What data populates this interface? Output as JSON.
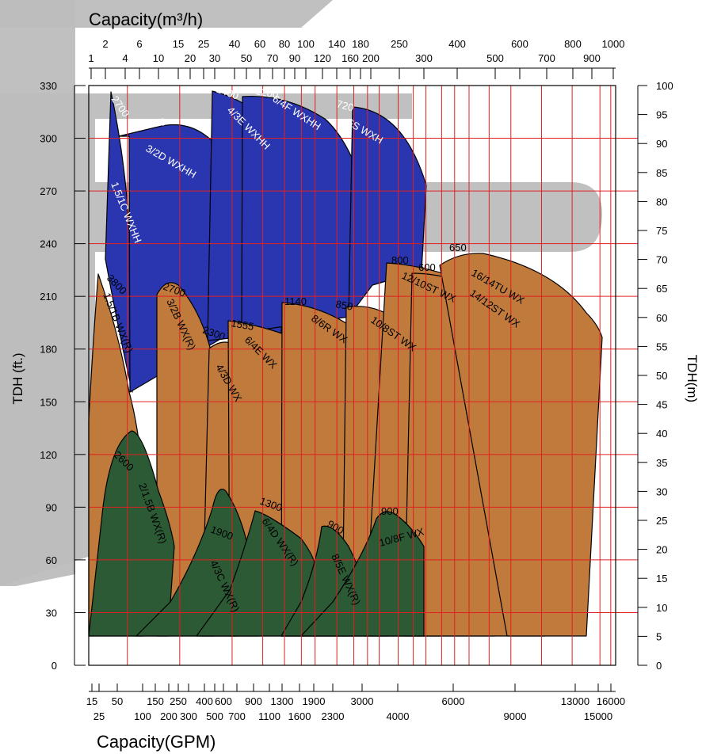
{
  "chart_data": {
    "type": "area",
    "title": "",
    "xlabel_top": "Capacity(m³/h)",
    "xlabel_bottom": "Capacity(GPM)",
    "ylabel_left": "TDH (ft.)",
    "ylabel_right": "TDH(m)",
    "x_scale": "log",
    "xlim_gpm": [
      15,
      16000
    ],
    "ylim_ft": [
      0,
      330
    ],
    "ylim_m": [
      0,
      100
    ],
    "grid": true,
    "grid_color": "#e02020",
    "colors": {
      "blue": "#2a36b0",
      "orange": "#c07a3c",
      "green": "#2b5a35",
      "watermark": "#bdbdbd",
      "grid": "#e02020"
    },
    "bottom_ticks_row1": [
      "15",
      "50",
      "150",
      "250",
      "400",
      "600",
      "900",
      "1300",
      "1900",
      "3000",
      "6000",
      "13000",
      "16000"
    ],
    "bottom_ticks_row2": [
      "25",
      "100",
      "200",
      "300",
      "500",
      "700",
      "1100",
      "1600",
      "2300",
      "4000",
      "9000",
      "15000"
    ],
    "top_ticks_row1": [
      "2",
      "6",
      "15",
      "25",
      "40",
      "60",
      "80",
      "100",
      "140",
      "180",
      "250",
      "400",
      "600",
      "800",
      "1000"
    ],
    "top_ticks_row2": [
      "1",
      "4",
      "10",
      "20",
      "30",
      "50",
      "70",
      "90",
      "120",
      "160",
      "200",
      "300",
      "500",
      "700",
      "900"
    ],
    "left_ticks": [
      "0",
      "30",
      "60",
      "90",
      "120",
      "150",
      "180",
      "210",
      "240",
      "270",
      "300",
      "330"
    ],
    "right_ticks": [
      "0",
      "5",
      "10",
      "15",
      "20",
      "25",
      "30",
      "35",
      "40",
      "45",
      "50",
      "55",
      "60",
      "65",
      "70",
      "75",
      "80",
      "85",
      "90",
      "95",
      "100"
    ],
    "series": [
      {
        "name": "1.5/1C WXHH",
        "speed": "2700",
        "color": "blue",
        "gpm_range": [
          55,
          180
        ],
        "tdh_ft_range": [
          55,
          325
        ]
      },
      {
        "name": "3/2D WXHH",
        "speed": "1450",
        "color": "blue",
        "gpm_range": [
          110,
          600
        ],
        "tdh_ft_range": [
          160,
          305
        ]
      },
      {
        "name": "4/3E WXHH",
        "speed": "1400",
        "color": "blue",
        "gpm_range": [
          450,
          1500
        ],
        "tdh_ft_range": [
          165,
          326
        ]
      },
      {
        "name": "6/4F WXHH",
        "speed": "1200",
        "color": "blue",
        "gpm_range": [
          600,
          2300
        ],
        "tdh_ft_range": [
          165,
          322
        ]
      },
      {
        "name": "6S WXH",
        "speed": "720",
        "color": "blue",
        "gpm_range": [
          1500,
          4500
        ],
        "tdh_ft_range": [
          160,
          318
        ]
      },
      {
        "name": "1.5/1B WX(R)",
        "speed": "3800",
        "color": "orange",
        "gpm_range": [
          15,
          180
        ],
        "tdh_ft_range": [
          16,
          218
        ]
      },
      {
        "name": "3/2B WX(R)",
        "speed": "2700",
        "color": "orange",
        "gpm_range": [
          90,
          450
        ],
        "tdh_ft_range": [
          16,
          212
        ]
      },
      {
        "name": "4/3D WX",
        "speed": "2300",
        "color": "orange",
        "gpm_range": [
          200,
          850
        ],
        "tdh_ft_range": [
          16,
          178
        ]
      },
      {
        "name": "6/4E WX",
        "speed": "1555",
        "color": "orange",
        "gpm_range": [
          400,
          1900
        ],
        "tdh_ft_range": [
          16,
          185
        ]
      },
      {
        "name": "8/6R WX",
        "speed": "1140",
        "color": "orange",
        "gpm_range": [
          650,
          3000
        ],
        "tdh_ft_range": [
          16,
          200
        ]
      },
      {
        "name": "10/8ST WX",
        "speed": "850",
        "color": "orange",
        "gpm_range": [
          1300,
          5000
        ],
        "tdh_ft_range": [
          16,
          200
        ]
      },
      {
        "name": "12/10ST WX",
        "speed": "800",
        "color": "orange",
        "gpm_range": [
          2200,
          8000
        ],
        "tdh_ft_range": [
          16,
          225
        ]
      },
      {
        "name": "14/12ST WX",
        "speed": "600",
        "color": "orange",
        "gpm_range": [
          3000,
          11000
        ],
        "tdh_ft_range": [
          16,
          228
        ]
      },
      {
        "name": "16/14TU WX",
        "speed": "650",
        "color": "orange",
        "gpm_range": [
          4500,
          16000
        ],
        "tdh_ft_range": [
          16,
          232
        ]
      },
      {
        "name": "2/1.5B WX(R)",
        "speed": "2600",
        "color": "green",
        "gpm_range": [
          60,
          200
        ],
        "tdh_ft_range": [
          16,
          134
        ]
      },
      {
        "name": "4/3C WX(R)",
        "speed": "1900",
        "color": "green",
        "gpm_range": [
          200,
          650
        ],
        "tdh_ft_range": [
          16,
          120
        ]
      },
      {
        "name": "6/4D WX(R)",
        "speed": "1300",
        "color": "green",
        "gpm_range": [
          400,
          1300
        ],
        "tdh_ft_range": [
          16,
          120
        ]
      },
      {
        "name": "8/5E WX(R)",
        "speed": "900",
        "color": "green",
        "gpm_range": [
          750,
          2200
        ],
        "tdh_ft_range": [
          16,
          120
        ]
      },
      {
        "name": "10/8F WX",
        "speed": "900",
        "color": "green",
        "gpm_range": [
          1100,
          4000
        ],
        "tdh_ft_range": [
          16,
          125
        ]
      }
    ]
  }
}
